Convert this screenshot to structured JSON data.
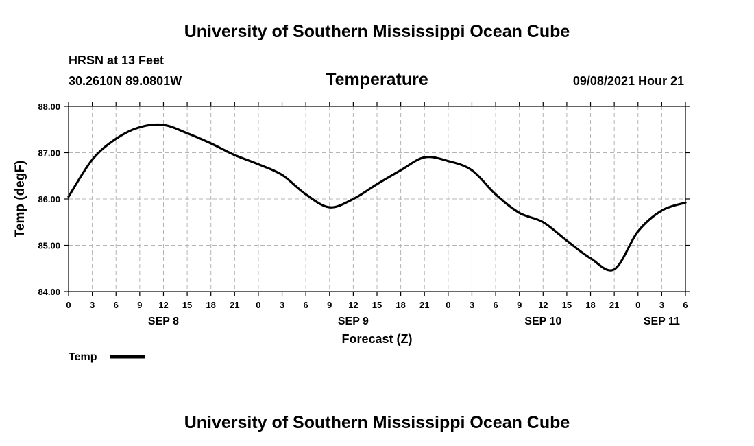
{
  "header": {
    "title_top": "University of Southern Mississippi Ocean Cube",
    "station": "HRSN at 13 Feet",
    "coords": "30.2610N  89.0801W",
    "parameter": "Temperature",
    "datetime": "09/08/2021 Hour 21"
  },
  "footer": {
    "title_bottom": "University of Southern Mississippi Ocean Cube"
  },
  "legend": {
    "label": "Temp",
    "color": "#000000"
  },
  "chart_data": {
    "type": "line",
    "title": "Temperature",
    "xlabel": "Forecast (Z)",
    "ylabel": "Temp (degF)",
    "ylim": [
      84.0,
      88.0
    ],
    "y_ticks": [
      "84.00",
      "85.00",
      "86.00",
      "87.00",
      "88.00"
    ],
    "y_tick_values": [
      84,
      85,
      86,
      87,
      88
    ],
    "xlim": [
      0,
      78
    ],
    "x_ticks": [
      0,
      3,
      6,
      9,
      12,
      15,
      18,
      21,
      24,
      27,
      30,
      33,
      36,
      39,
      42,
      45,
      48,
      51,
      54,
      57,
      60,
      63,
      66,
      69,
      72,
      75,
      78
    ],
    "x_tick_labels": [
      "0",
      "3",
      "6",
      "9",
      "12",
      "15",
      "18",
      "21",
      "0",
      "3",
      "6",
      "9",
      "12",
      "15",
      "18",
      "21",
      "0",
      "3",
      "6",
      "9",
      "12",
      "15",
      "18",
      "21",
      "0",
      "3",
      "6"
    ],
    "day_labels": [
      {
        "label": "SEP 8",
        "hour": 12
      },
      {
        "label": "SEP 9",
        "hour": 36
      },
      {
        "label": "SEP 10",
        "hour": 60
      },
      {
        "label": "SEP 11",
        "hour": 75
      }
    ],
    "grid": true,
    "series": [
      {
        "name": "Temp",
        "x": [
          0,
          3,
          6,
          9,
          12,
          15,
          18,
          21,
          24,
          27,
          30,
          33,
          36,
          39,
          42,
          45,
          48,
          51,
          54,
          57,
          60,
          63,
          66,
          69,
          72,
          75,
          78
        ],
        "values": [
          86.05,
          86.85,
          87.3,
          87.55,
          87.6,
          87.42,
          87.2,
          86.95,
          86.75,
          86.52,
          86.1,
          85.82,
          86.0,
          86.32,
          86.62,
          86.9,
          86.82,
          86.62,
          86.1,
          85.7,
          85.5,
          85.1,
          84.72,
          84.48,
          85.3,
          85.75,
          85.92
        ]
      }
    ]
  }
}
